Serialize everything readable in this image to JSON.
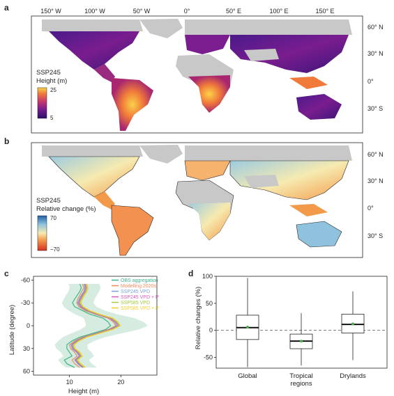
{
  "panels": {
    "a": {
      "letter": "a",
      "legend_title_1": "SSP245",
      "legend_title_2": "Height (m)",
      "legend_max": "25",
      "legend_min": "5",
      "lon_ticks": [
        "150° W",
        "100° W",
        "50° W",
        "0°",
        "50° E",
        "100° E",
        "150° E"
      ],
      "lat_ticks": [
        "60° N",
        "30° N",
        "0°",
        "30° S"
      ],
      "colormap": [
        "#2b0f6b",
        "#7a1d8f",
        "#c8366f",
        "#f07a3a",
        "#fbd24a"
      ]
    },
    "b": {
      "letter": "b",
      "legend_title_1": "SSP245",
      "legend_title_2": "Relative change (%)",
      "legend_max": "70",
      "legend_min": "−70",
      "lat_ticks": [
        "60° N",
        "30° N",
        "0°",
        "30° S"
      ],
      "colormap": [
        "#1f5fa8",
        "#8fc3dd",
        "#f6eab0",
        "#f39a4a",
        "#d7301f"
      ]
    },
    "c": {
      "letter": "c",
      "ylabel": "Latitude (degree)",
      "xlabel": "Height (m)",
      "yticks": [
        "-60",
        "-30",
        "0",
        "30",
        "60"
      ],
      "xticks": [
        "10",
        "20"
      ]
    },
    "d": {
      "letter": "d",
      "ylabel": "Relative changes (%)",
      "yticks": [
        "100",
        "50",
        "0",
        "-50"
      ],
      "category_line2": "regions"
    }
  },
  "chart_data": [
    {
      "type": "line",
      "panel": "c",
      "xlabel": "Height (m)",
      "ylabel": "Latitude (degree)",
      "xlim": [
        3,
        27
      ],
      "ylim": [
        -65,
        65
      ],
      "orientation": "latitude-vertical",
      "latitudes": [
        -55,
        -50,
        -45,
        -40,
        -35,
        -30,
        -25,
        -20,
        -15,
        -10,
        -5,
        0,
        5,
        10,
        15,
        20,
        25,
        30,
        35,
        40,
        45,
        50,
        55
      ],
      "series": [
        {
          "name": "OBS aggregation",
          "color": "#3cb58a",
          "values": [
            12.0,
            12.3,
            12.0,
            11.5,
            11.0,
            10.6,
            11.0,
            12.5,
            14.0,
            16.5,
            17.5,
            18.0,
            17.0,
            14.5,
            12.0,
            10.5,
            9.5,
            9.5,
            10.0,
            10.5,
            9.0,
            9.5,
            11.0
          ]
        },
        {
          "name": "Modelling 2020s",
          "color": "#f28a5c",
          "values": [
            12.5,
            12.8,
            12.4,
            12.0,
            11.6,
            11.4,
            11.8,
            13.0,
            15.0,
            17.5,
            18.5,
            19.0,
            17.5,
            15.0,
            12.5,
            11.0,
            10.0,
            10.2,
            11.0,
            11.5,
            10.5,
            11.0,
            12.0
          ]
        },
        {
          "name": "SSP245 VPD",
          "color": "#7b9fd4",
          "values": [
            12.8,
            13.0,
            12.8,
            12.3,
            11.9,
            11.6,
            12.1,
            13.3,
            15.3,
            17.8,
            18.8,
            19.2,
            17.8,
            15.2,
            12.8,
            11.3,
            10.3,
            10.5,
            11.4,
            11.9,
            11.0,
            11.6,
            12.5
          ]
        },
        {
          "name": "SSP245 VPD + P",
          "color": "#d45bb8",
          "values": [
            13.0,
            13.2,
            13.0,
            12.5,
            12.1,
            11.8,
            12.3,
            13.5,
            15.5,
            18.0,
            19.0,
            19.5,
            18.0,
            15.5,
            13.0,
            11.5,
            10.5,
            10.7,
            11.6,
            12.1,
            11.2,
            11.8,
            12.7
          ]
        },
        {
          "name": "SSP585 VPD",
          "color": "#a6c83c",
          "values": [
            13.2,
            13.4,
            13.2,
            12.7,
            12.3,
            12.0,
            12.5,
            13.7,
            15.7,
            18.2,
            19.2,
            19.7,
            18.2,
            15.7,
            13.2,
            11.7,
            10.7,
            10.9,
            11.8,
            12.3,
            11.4,
            12.0,
            12.9
          ]
        },
        {
          "name": "SSP585 VPD + P",
          "color": "#f2cf2f",
          "values": [
            13.4,
            13.6,
            13.4,
            12.9,
            12.5,
            12.2,
            12.7,
            13.9,
            15.9,
            18.4,
            19.4,
            19.9,
            18.4,
            15.9,
            13.4,
            11.9,
            10.9,
            11.1,
            12.0,
            12.5,
            11.6,
            12.2,
            13.1
          ]
        }
      ],
      "legend": "top-right"
    },
    {
      "type": "box",
      "panel": "d",
      "ylabel": "Relative changes (%)",
      "ylim": [
        -70,
        100
      ],
      "categories": [
        "Global",
        "Tropical",
        "Drylands"
      ],
      "boxes": [
        {
          "whisker_low": -68,
          "q1": -17,
          "median": 5,
          "q3": 28,
          "whisker_high": 97,
          "mean": 6
        },
        {
          "whisker_low": -65,
          "q1": -34,
          "median": -20,
          "q3": -7,
          "whisker_high": 32,
          "mean": -20
        },
        {
          "whisker_low": -55,
          "q1": -5,
          "median": 11,
          "q3": 30,
          "whisker_high": 72,
          "mean": 12
        }
      ],
      "reference_line": 0,
      "mean_color": "#4caf50"
    }
  ]
}
